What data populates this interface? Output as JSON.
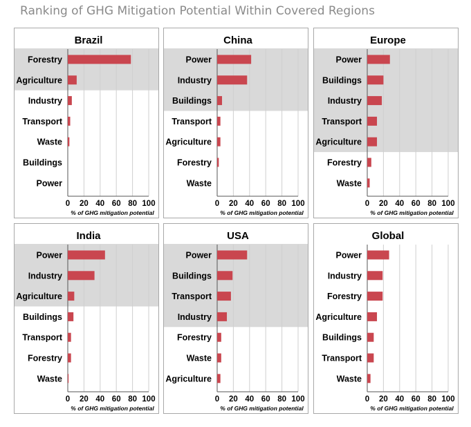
{
  "page": {
    "title": "Ranking of GHG Mitigation Potential Within Covered Regions"
  },
  "colors": {
    "bar": "#c9464f",
    "highlight": "#d9d9d9",
    "grid": "#cfcfcf",
    "axis": "#555555",
    "text": "#000000"
  },
  "chart_data": [
    {
      "type": "bar",
      "orientation": "horizontal",
      "title": "Brazil",
      "categories": [
        "Forestry",
        "Agriculture",
        "Industry",
        "Transport",
        "Waste",
        "Buildings",
        "Power"
      ],
      "values": [
        78,
        11,
        5,
        3,
        2,
        0,
        0
      ],
      "highlighted_count": 2,
      "xlabel": "% of GHG mitigation potential",
      "xlim": [
        0,
        100
      ],
      "xticks": [
        "0",
        "20",
        "40",
        "60",
        "80",
        "100"
      ],
      "grid": true
    },
    {
      "type": "bar",
      "orientation": "horizontal",
      "title": "China",
      "categories": [
        "Power",
        "Industry",
        "Buildings",
        "Transport",
        "Agriculture",
        "Forestry",
        "Waste"
      ],
      "values": [
        42,
        37,
        6,
        4,
        4,
        2,
        0
      ],
      "highlighted_count": 3,
      "xlabel": "% of GHG mitigation potential",
      "xlim": [
        0,
        100
      ],
      "xticks": [
        "0",
        "20",
        "40",
        "60",
        "80",
        "100"
      ],
      "grid": true
    },
    {
      "type": "bar",
      "orientation": "horizontal",
      "title": "Europe",
      "categories": [
        "Power",
        "Buildings",
        "Industry",
        "Transport",
        "Agriculture",
        "Forestry",
        "Waste"
      ],
      "values": [
        28,
        20,
        18,
        12,
        12,
        5,
        3
      ],
      "highlighted_count": 5,
      "xlabel": "% of GHG mitigation potential",
      "xlim": [
        0,
        100
      ],
      "xticks": [
        "0",
        "20",
        "40",
        "60",
        "80",
        "100"
      ],
      "grid": true
    },
    {
      "type": "bar",
      "orientation": "horizontal",
      "title": "India",
      "categories": [
        "Power",
        "Industry",
        "Agriculture",
        "Buildings",
        "Transport",
        "Forestry",
        "Waste"
      ],
      "values": [
        46,
        33,
        8,
        7,
        4,
        4,
        1
      ],
      "highlighted_count": 3,
      "xlabel": "% of GHG mitigation potential",
      "xlim": [
        0,
        100
      ],
      "xticks": [
        "0",
        "20",
        "40",
        "60",
        "80",
        "100"
      ],
      "grid": true
    },
    {
      "type": "bar",
      "orientation": "horizontal",
      "title": "USA",
      "categories": [
        "Power",
        "Buildings",
        "Transport",
        "Industry",
        "Forestry",
        "Waste",
        "Agriculture"
      ],
      "values": [
        37,
        19,
        17,
        12,
        5,
        5,
        4
      ],
      "highlighted_count": 4,
      "xlabel": "% of GHG mitigation potential",
      "xlim": [
        0,
        100
      ],
      "xticks": [
        "0",
        "20",
        "40",
        "60",
        "80",
        "100"
      ],
      "grid": true
    },
    {
      "type": "bar",
      "orientation": "horizontal",
      "title": "Global",
      "categories": [
        "Power",
        "Industry",
        "Forestry",
        "Agriculture",
        "Buildings",
        "Transport",
        "Waste"
      ],
      "values": [
        27,
        19,
        19,
        12,
        8,
        8,
        4
      ],
      "highlighted_count": 0,
      "xlabel": "% of GHG mitigation potential",
      "xlim": [
        0,
        100
      ],
      "xticks": [
        "0",
        "20",
        "40",
        "60",
        "80",
        "100"
      ],
      "grid": true
    }
  ]
}
